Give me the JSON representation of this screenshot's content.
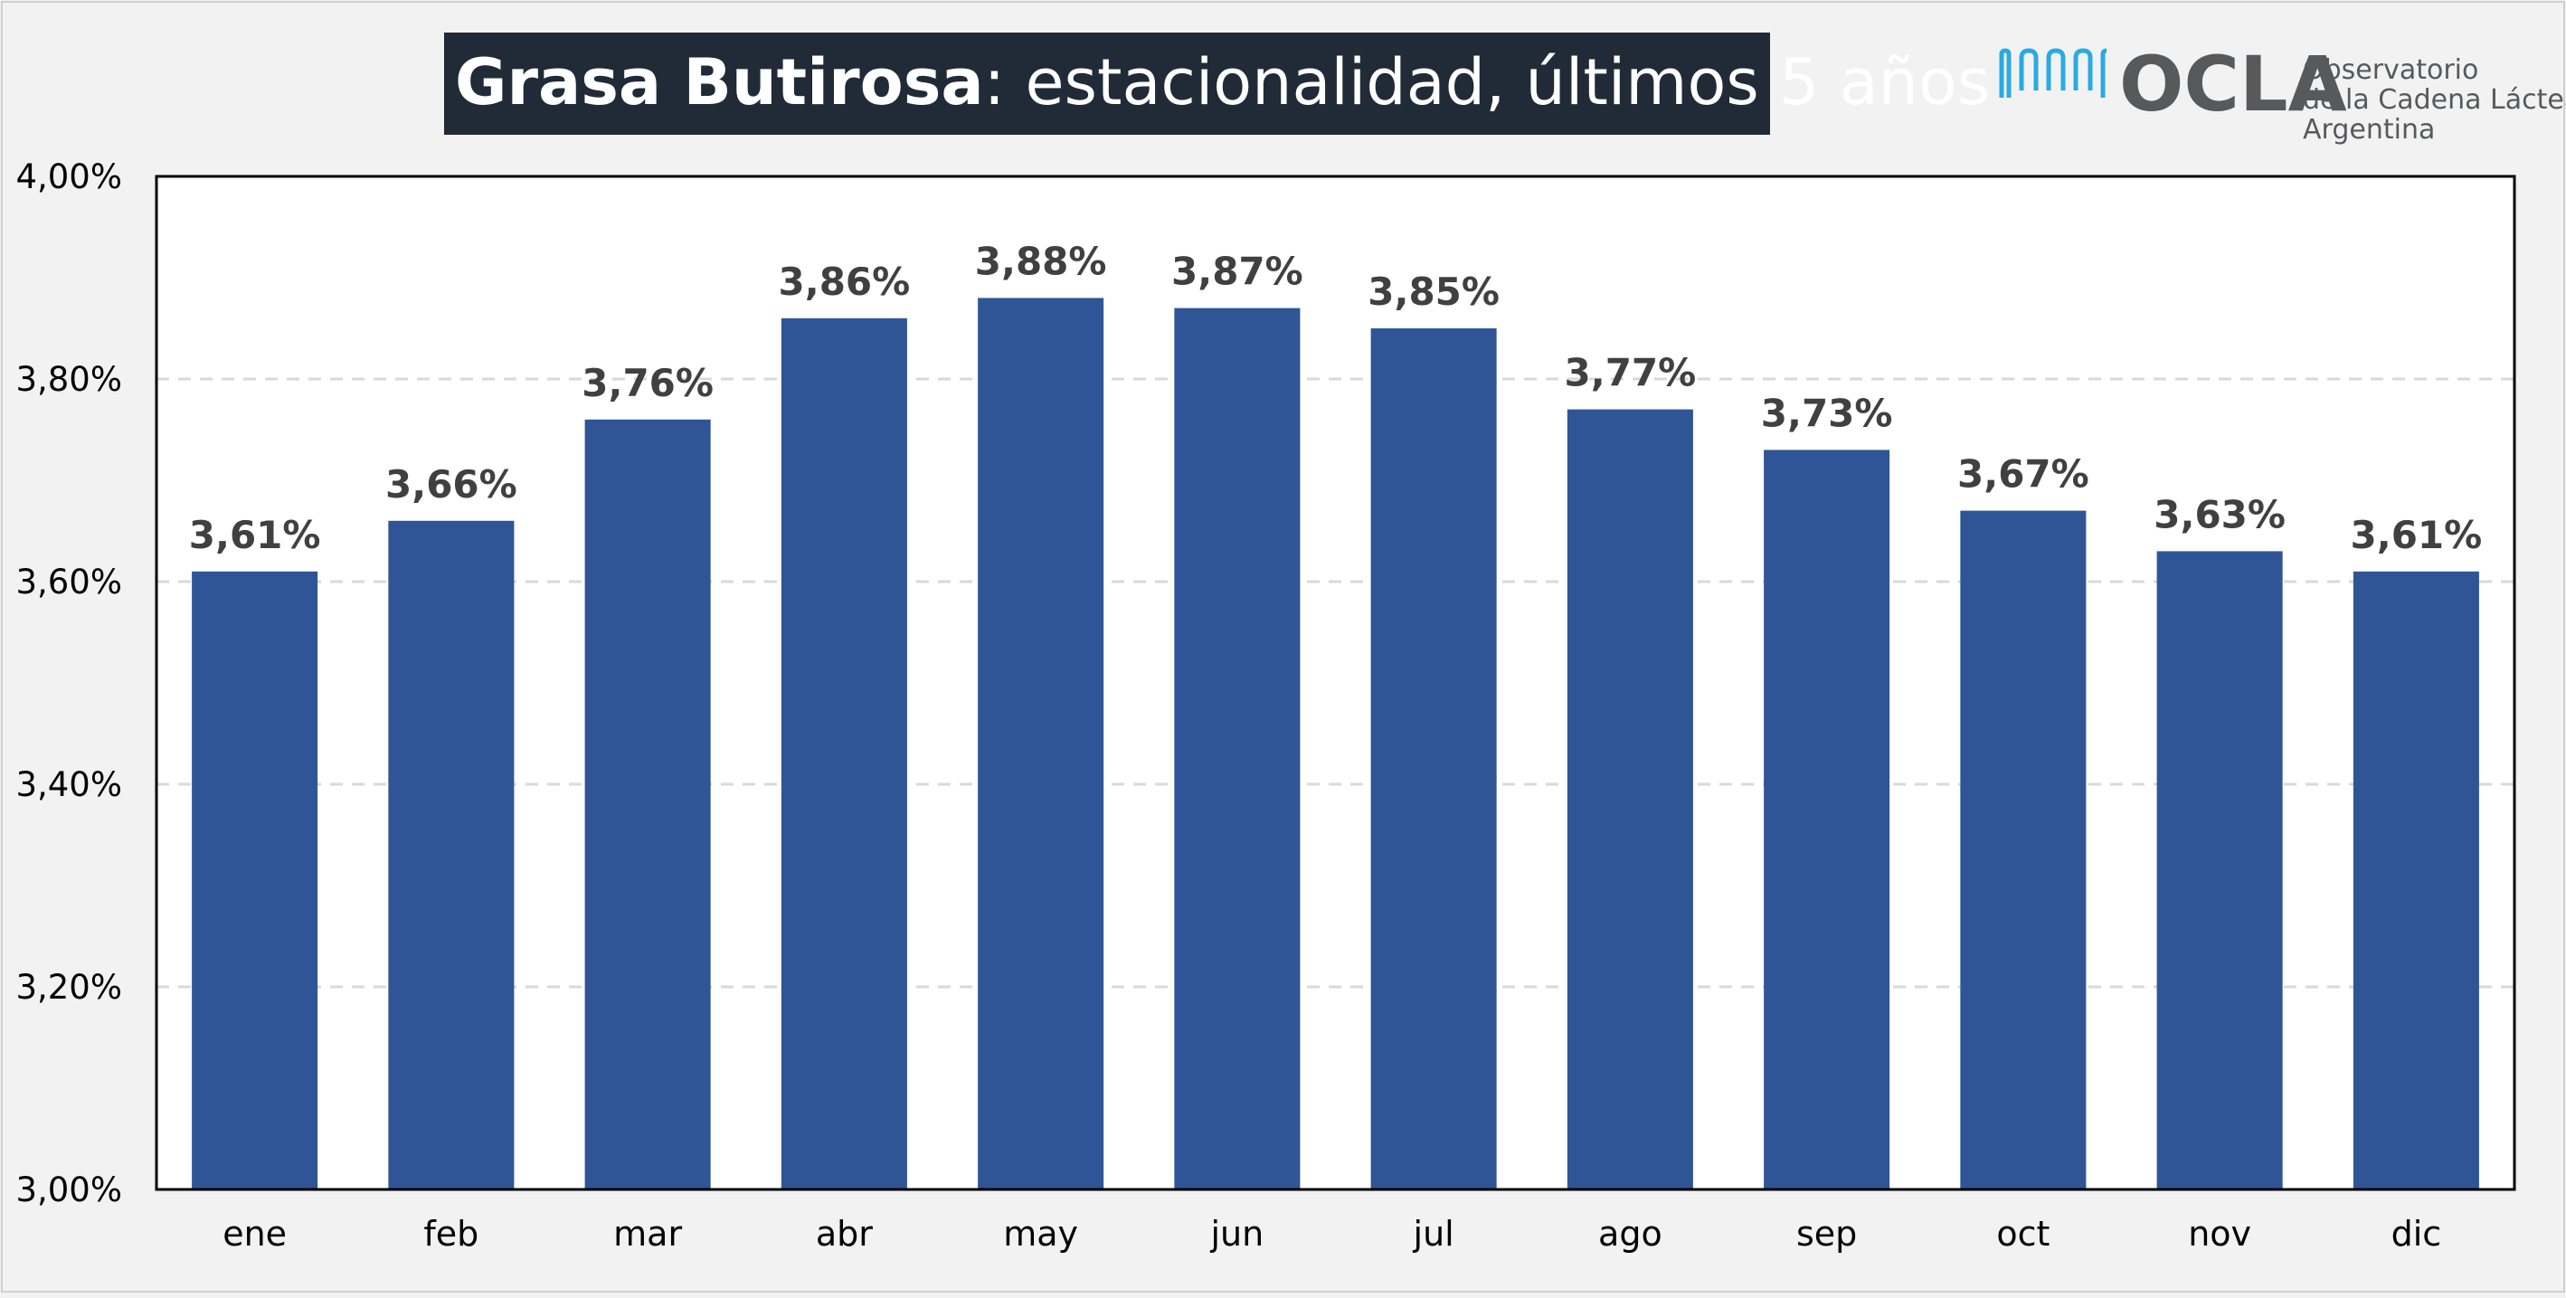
{
  "title": {
    "bold": "Grasa Butirosa",
    "regular": ": estacionalidad, últimos 5 años"
  },
  "logo": {
    "name": "OCLA",
    "line1": "Observatorio",
    "line2": "de la Cadena Láctea",
    "line3": "Argentina",
    "color_primary": "#58595b",
    "color_accent": "#29abe2"
  },
  "colors": {
    "bar": "#2f5597",
    "background": "#f2f2f2",
    "plot_background": "#ffffff",
    "grid": "#d9d9d9",
    "title_bg": "#212a37",
    "label_text": "#404040"
  },
  "chart_data": {
    "type": "bar",
    "categories": [
      "ene",
      "feb",
      "mar",
      "abr",
      "may",
      "jun",
      "jul",
      "ago",
      "sep",
      "oct",
      "nov",
      "dic"
    ],
    "values": [
      3.61,
      3.66,
      3.76,
      3.86,
      3.88,
      3.87,
      3.85,
      3.77,
      3.73,
      3.67,
      3.63,
      3.61
    ],
    "data_labels": [
      "3,61%",
      "3,66%",
      "3,76%",
      "3,86%",
      "3,88%",
      "3,87%",
      "3,85%",
      "3,77%",
      "3,73%",
      "3,67%",
      "3,63%",
      "3,61%"
    ],
    "title": "Grasa Butirosa: estacionalidad, últimos 5 años",
    "xlabel": "",
    "ylabel": "",
    "ylim": [
      3.0,
      4.0
    ],
    "yticks": [
      3.0,
      3.2,
      3.4,
      3.6,
      3.8,
      4.0
    ],
    "ytick_labels": [
      "3,00%",
      "3,20%",
      "3,40%",
      "3,60%",
      "3,80%",
      "4,00%"
    ],
    "grid": true,
    "legend": "none"
  }
}
